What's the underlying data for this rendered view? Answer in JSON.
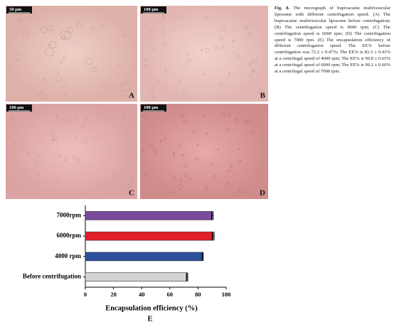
{
  "figure": {
    "caption_label": "Fig. 8.",
    "caption": "The micrograph of bupivacaine multivesicular liposome with different centrifugation speed. (A) The bupivacaine multivesicular liposome before centrifugation; (B) The centrifugation speed is 4000 rpm; (C) The centrifugation speed is 6000 rpm; (D) The centrifugation speed is 7000 rpm. (E) The encapsulation efficiency of different centrifugation speed. The EE% before centrifugation was 72.2 ± 0.47%; The EE% is 83.3 ± 0.41% at a centrifugal speed of 4000 rpm; The EE% is 90.8 ± 0.65% at a centrifugal speed of 6000 rpm; The EE% is 90.2 ± 0.60% at a centrifugal speed of 7000 rpm.",
    "panels": [
      {
        "label": "A",
        "scale": "50 μm"
      },
      {
        "label": "B",
        "scale": "100 μm"
      },
      {
        "label": "C",
        "scale": "100 μm"
      },
      {
        "label": "D",
        "scale": "100 μm"
      }
    ]
  },
  "chart_data": {
    "type": "hbar",
    "x_label": "Encapsulation efficiency (%)",
    "panel_label": "E",
    "categories": [
      "7000rpm",
      "6000rpm",
      "4000 rpm",
      "Before centrifugation"
    ],
    "values": [
      90.2,
      90.8,
      83.3,
      72.2
    ],
    "errors": [
      0.6,
      0.65,
      0.41,
      0.47
    ],
    "colors": [
      "#7b4a9e",
      "#e01e2a",
      "#2c4f9e",
      "#d3d3d3"
    ],
    "xlim": [
      0,
      100
    ],
    "xticks": [
      0,
      20,
      40,
      60,
      80,
      100
    ]
  }
}
